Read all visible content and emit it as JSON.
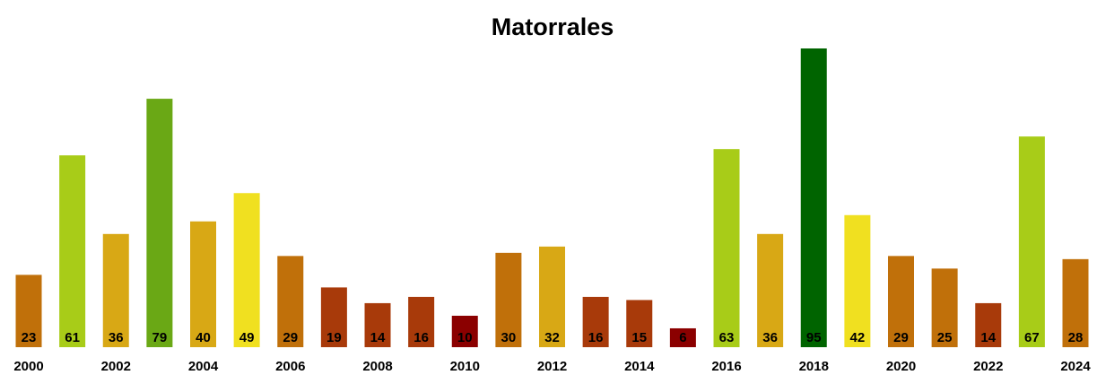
{
  "chart_data": {
    "type": "bar",
    "title": "Matorrales",
    "categories": [
      "2000",
      null,
      "2002",
      null,
      "2004",
      null,
      "2006",
      null,
      "2008",
      null,
      "2010",
      null,
      "2012",
      null,
      "2014",
      null,
      "2016",
      null,
      "2018",
      null,
      "2020",
      null,
      "2022",
      null,
      "2024"
    ],
    "values": [
      23,
      61,
      36,
      79,
      40,
      49,
      29,
      19,
      14,
      16,
      10,
      30,
      32,
      16,
      15,
      6,
      63,
      36,
      95,
      42,
      29,
      25,
      14,
      67,
      28
    ],
    "colors": [
      "#c0700a",
      "#a8cc18",
      "#d8a815",
      "#6aa815",
      "#d8a815",
      "#f0e020",
      "#c0700a",
      "#a83a0a",
      "#a83a0a",
      "#a83a0a",
      "#8b0000",
      "#c0700a",
      "#d8a815",
      "#a83a0a",
      "#a83a0a",
      "#8b0000",
      "#a8cc18",
      "#d8a815",
      "#006400",
      "#f0e020",
      "#c0700a",
      "#c0700a",
      "#a83a0a",
      "#a8cc18",
      "#c0700a"
    ]
  }
}
